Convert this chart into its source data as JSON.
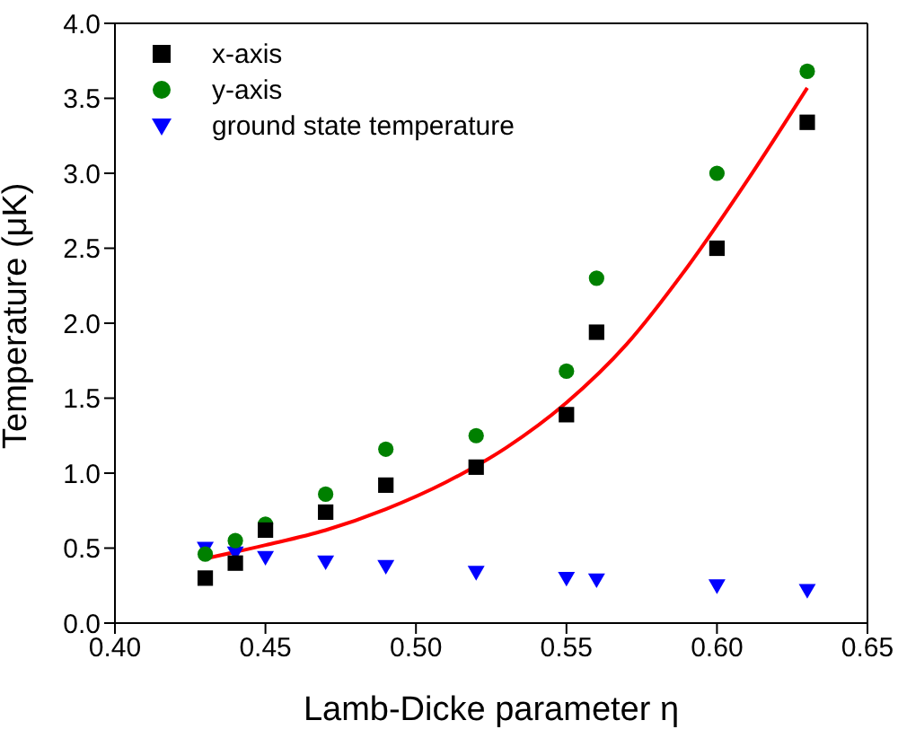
{
  "chart_data": {
    "type": "scatter",
    "xlabel": "Lamb-Dicke parameter η",
    "ylabel": "Temperature (μK)",
    "xlim": [
      0.4,
      0.65
    ],
    "xticks": [
      {
        "value": 0.4,
        "label": "0.40"
      },
      {
        "value": 0.45,
        "label": "0.45"
      },
      {
        "value": 0.5,
        "label": "0.50"
      },
      {
        "value": 0.55,
        "label": "0.55"
      },
      {
        "value": 0.6,
        "label": "0.60"
      },
      {
        "value": 0.65,
        "label": "0.65"
      }
    ],
    "ylim": [
      0,
      4
    ],
    "yticks": [
      {
        "value": 0,
        "label": "0.0"
      },
      {
        "value": 0.5,
        "label": "0.5"
      },
      {
        "value": 1,
        "label": "1.0"
      },
      {
        "value": 1.5,
        "label": "1.5"
      },
      {
        "value": 2,
        "label": "2.0"
      },
      {
        "value": 2.5,
        "label": "2.5"
      },
      {
        "value": 3,
        "label": "3.0"
      },
      {
        "value": 3.5,
        "label": "3.5"
      },
      {
        "value": 4,
        "label": "4.0"
      }
    ],
    "x": [
      0.43,
      0.44,
      0.45,
      0.47,
      0.49,
      0.52,
      0.55,
      0.56,
      0.6,
      0.63
    ],
    "legend": "top left",
    "grid": false,
    "series": [
      {
        "name": "x-axis",
        "color": "#000000",
        "marker": "square",
        "values": [
          0.3,
          0.4,
          0.62,
          0.74,
          0.92,
          1.04,
          1.39,
          1.94,
          2.5,
          3.34
        ]
      },
      {
        "name": "y-axis",
        "color": "#008000",
        "marker": "circle",
        "values": [
          0.46,
          0.55,
          0.66,
          0.86,
          1.16,
          1.25,
          1.68,
          2.3,
          3.0,
          3.68
        ]
      },
      {
        "name": "ground state temperature",
        "color": "#0000ff",
        "marker": "triangle",
        "values": [
          0.5,
          0.47,
          0.44,
          0.41,
          0.38,
          0.34,
          0.3,
          0.29,
          0.25,
          0.22
        ]
      },
      {
        "type": "line",
        "color": "#ff0000",
        "marker": "none",
        "x": [
          0.43,
          0.45,
          0.47,
          0.49,
          0.51,
          0.53,
          0.55,
          0.57,
          0.59,
          0.61,
          0.63
        ],
        "values": [
          0.43,
          0.52,
          0.62,
          0.76,
          0.94,
          1.17,
          1.47,
          1.86,
          2.37,
          2.95,
          3.57
        ]
      }
    ]
  }
}
